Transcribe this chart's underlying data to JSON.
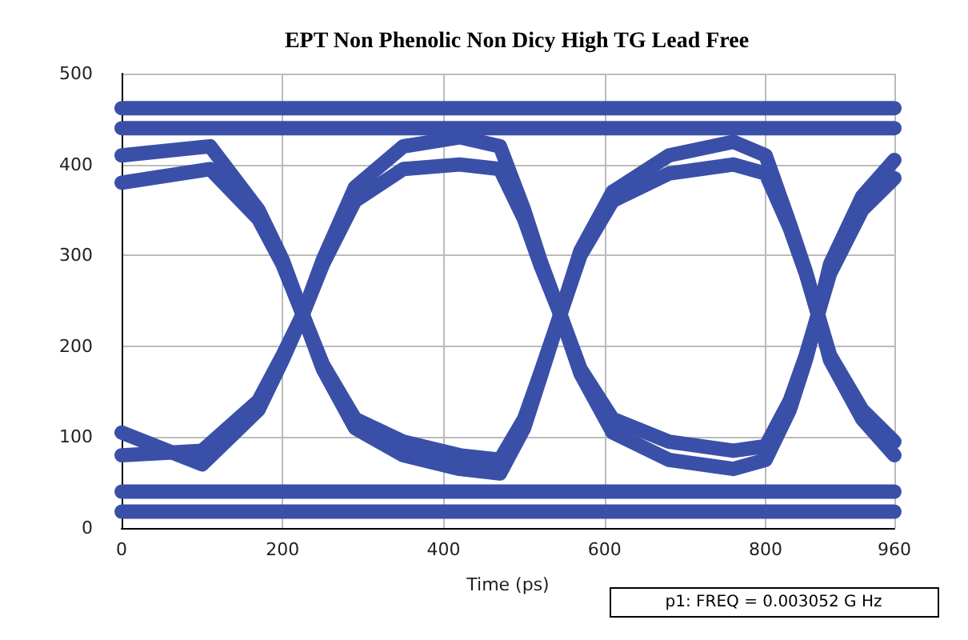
{
  "chart_data": {
    "type": "line",
    "title": "EPT Non Phenolic Non Dicy High TG Lead Free",
    "xlabel": "Time (ps)",
    "annotations": [
      "p1: FREQ = 0.003052 G Hz"
    ],
    "xlim": [
      0,
      960
    ],
    "xticks": [
      0,
      200,
      400,
      600,
      800,
      960
    ],
    "ylim": [
      0,
      500
    ],
    "yticks": [
      0,
      100,
      200,
      300,
      400,
      500
    ],
    "grid": true,
    "line_style": "solid",
    "series": [
      {
        "color": "#3a50a8",
        "x": [
          0,
          960
        ],
        "values": [
          440,
          440
        ]
      },
      {
        "color": "#3a50a8",
        "x": [
          0,
          960
        ],
        "values": [
          462,
          462
        ]
      },
      {
        "color": "#3a50a8",
        "x": [
          0,
          960
        ],
        "values": [
          18,
          18
        ]
      },
      {
        "color": "#3a50a8",
        "x": [
          0,
          960
        ],
        "values": [
          40,
          40
        ]
      },
      {
        "color": "#3a50a8",
        "x": [
          0,
          110,
          170,
          200,
          225,
          250,
          290,
          350,
          420,
          470,
          500,
          520,
          545,
          570,
          610,
          680,
          760,
          800,
          830,
          850,
          865,
          880,
          920,
          960
        ],
        "values": [
          380,
          395,
          340,
          290,
          235,
          180,
          120,
          95,
          80,
          75,
          120,
          170,
          235,
          300,
          360,
          390,
          400,
          390,
          330,
          280,
          235,
          190,
          130,
          95
        ]
      },
      {
        "color": "#3a50a8",
        "x": [
          0,
          110,
          170,
          200,
          225,
          250,
          290,
          350,
          420,
          470,
          500,
          520,
          545,
          570,
          610,
          680,
          760,
          800,
          830,
          850,
          865,
          880,
          920,
          960
        ],
        "values": [
          410,
          420,
          350,
          295,
          235,
          175,
          110,
          80,
          65,
          60,
          110,
          165,
          235,
          305,
          370,
          410,
          425,
          410,
          335,
          282,
          235,
          185,
          120,
          80
        ]
      },
      {
        "color": "#3a50a8",
        "x": [
          0,
          100,
          170,
          200,
          225,
          250,
          290,
          350,
          420,
          470,
          500,
          520,
          545,
          570,
          610,
          680,
          760,
          800,
          830,
          850,
          865,
          880,
          920,
          960
        ],
        "values": [
          80,
          85,
          140,
          190,
          235,
          290,
          360,
          395,
          400,
          395,
          340,
          290,
          235,
          175,
          120,
          95,
          85,
          90,
          140,
          190,
          235,
          280,
          350,
          385
        ]
      },
      {
        "color": "#3a50a8",
        "x": [
          0,
          100,
          170,
          200,
          225,
          250,
          290,
          350,
          420,
          470,
          500,
          520,
          545,
          570,
          610,
          680,
          760,
          800,
          830,
          850,
          865,
          880,
          920,
          960
        ],
        "values": [
          105,
          70,
          130,
          185,
          235,
          295,
          375,
          420,
          430,
          420,
          350,
          295,
          235,
          170,
          105,
          75,
          65,
          75,
          130,
          185,
          235,
          290,
          365,
          405
        ]
      }
    ]
  }
}
